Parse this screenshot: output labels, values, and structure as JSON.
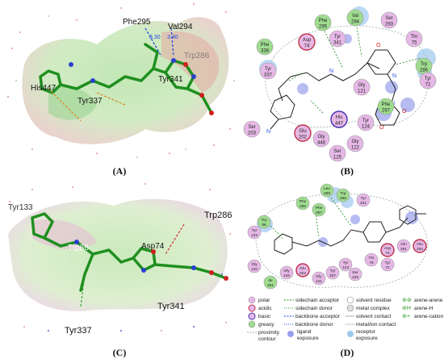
{
  "panelA": {
    "labels": {
      "phe295": "Phe295",
      "val294": "Val294",
      "trp286": "Trp286",
      "his447": "His447",
      "tyr337": "Tyr337",
      "tyr341": "Tyr341",
      "d1": "3.30",
      "d2": "3.40"
    }
  },
  "panelB": {
    "residues": [
      {
        "name": "Phe\n295",
        "type": "greasy"
      },
      {
        "name": "Val\n294",
        "type": "greasy"
      },
      {
        "name": "Ser\n293",
        "type": "polar"
      },
      {
        "name": "Asp\n74",
        "type": "acidic"
      },
      {
        "name": "Tyr\n341",
        "type": "polar"
      },
      {
        "name": "Thr\n75",
        "type": "polar"
      },
      {
        "name": "Phe\n338",
        "type": "greasy"
      },
      {
        "name": "Trp\n286",
        "type": "greasy"
      },
      {
        "name": "Tyr\n72",
        "type": "polar"
      },
      {
        "name": "Tyr\n337",
        "type": "polar"
      },
      {
        "name": "Gly\n121",
        "type": "polar"
      },
      {
        "name": "Phe\n297",
        "type": "greasy"
      },
      {
        "name": "His\n447",
        "type": "basic"
      },
      {
        "name": "Tyr\n124",
        "type": "polar"
      },
      {
        "name": "Ser\n203",
        "type": "polar"
      },
      {
        "name": "Glu\n202",
        "type": "acidic"
      },
      {
        "name": "Gly\n448",
        "type": "polar"
      },
      {
        "name": "Gly\n122",
        "type": "polar"
      },
      {
        "name": "Ser\n125",
        "type": "polar"
      }
    ]
  },
  "panelC": {
    "labels": {
      "tyr133": "Tyr133",
      "trp286": "Trp286",
      "trp86": "Trp86",
      "asp74": "Asp74",
      "tyr341": "Tyr341",
      "tyr337": "Tyr337"
    }
  },
  "panelD": {
    "legend": {
      "polar": "polar",
      "acidic": "acidic",
      "basic": "basic",
      "greasy": "greasy",
      "proximity": "proximity\ncontour",
      "sc_acceptor": "sidechain acceptor",
      "sc_donor": "sidechain donor",
      "bb_acceptor": "backbone acceptor",
      "bb_donor": "backbone donor",
      "ligand_exposure": "ligand\nexposure",
      "solvent_residue": "solvent residue",
      "metal_complex": "metal complex",
      "solvent_contact": "solvent contact",
      "metal_ion_contact": "metal/ion contact",
      "receptor_exposure": "receptor\nexposure",
      "arene_arene": "arene-arene",
      "arene_h": "arene-H",
      "arene_cation": "arene-cation"
    },
    "residues": [
      {
        "name": "Leu\n289",
        "type": "greasy"
      },
      {
        "name": "Trp\n286",
        "type": "greasy"
      },
      {
        "name": "Tyr\n341",
        "type": "polar"
      },
      {
        "name": "Phe\n295",
        "type": "greasy"
      },
      {
        "name": "Trp\n86",
        "type": "greasy"
      },
      {
        "name": "Phe\n297",
        "type": "greasy"
      },
      {
        "name": "Tyr\n133",
        "type": "polar"
      },
      {
        "name": "Gln\n291",
        "type": "polar"
      },
      {
        "name": "Asp\n74",
        "type": "acidic"
      },
      {
        "name": "Glu\n292",
        "type": "acidic"
      },
      {
        "name": "Thr\n75",
        "type": "polar"
      },
      {
        "name": "Tyr\n72",
        "type": "polar"
      },
      {
        "name": "Tyr\n124",
        "type": "polar"
      },
      {
        "name": "Tyr\n337",
        "type": "polar"
      },
      {
        "name": "Ser\n125",
        "type": "polar"
      },
      {
        "name": "Glu\n202",
        "type": "acidic"
      },
      {
        "name": "Gly\n126",
        "type": "polar"
      },
      {
        "name": "Gly\n121",
        "type": "polar"
      },
      {
        "name": "Ile\n451",
        "type": "greasy"
      },
      {
        "name": "Gly\n120",
        "type": "polar"
      }
    ]
  },
  "captions": {
    "a": "(A)",
    "b": "(B)",
    "c": "(C)",
    "d": "(D)"
  },
  "colors": {
    "polar": "#e6b8e6",
    "acidic_border": "#c0304a",
    "basic_border": "#4030b0",
    "greasy": "#9fdc8f",
    "ligand_exposure": "#3040d8",
    "receptor_exposure": "#9fc8ef"
  }
}
